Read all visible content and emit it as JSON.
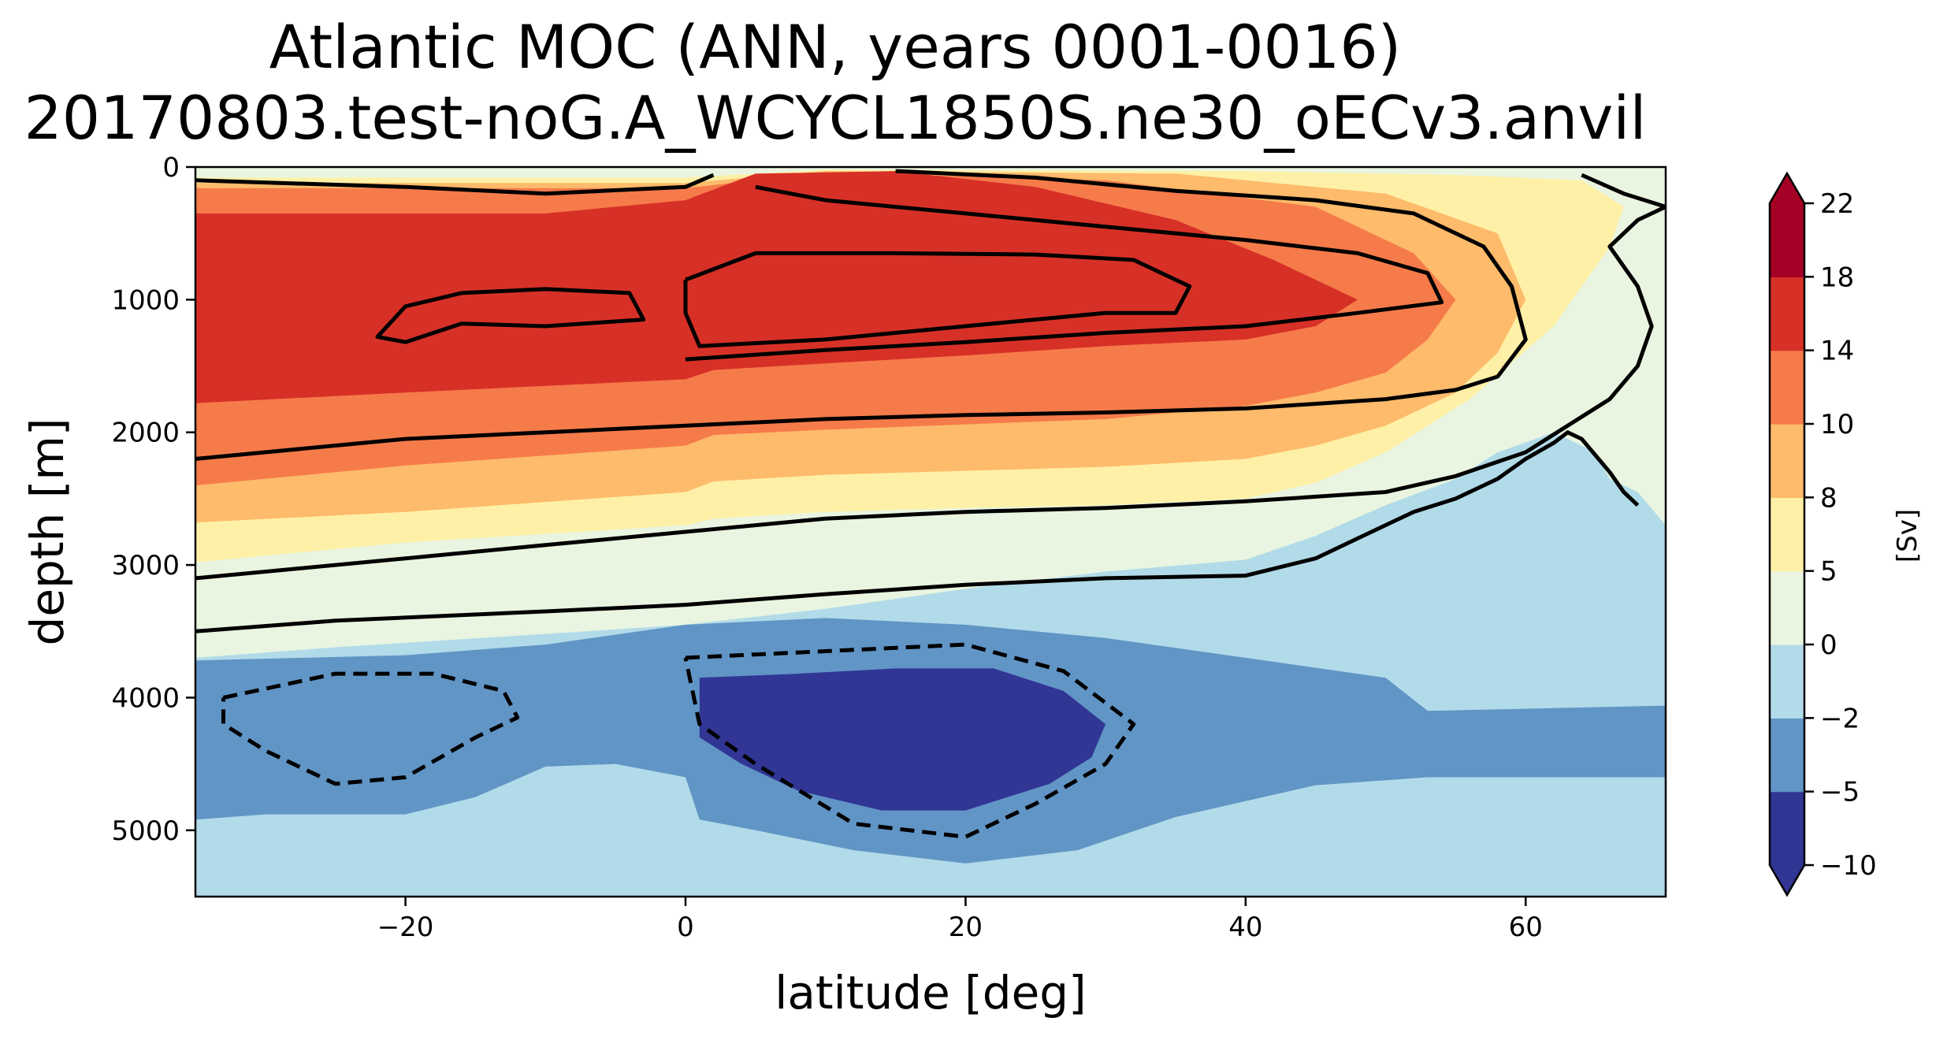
{
  "chart_data": {
    "type": "heatmap",
    "title": "Atlantic MOC (ANN, years 0001-0016)",
    "subtitle": "20170803.test-noG.A_WCYCL1850S.ne30_oECv3.anvil",
    "xlabel": "latitude [deg]",
    "ylabel": "depth [m]",
    "xlim": [
      -35,
      70
    ],
    "ylim": [
      5500,
      0
    ],
    "y_inverted": true,
    "x_ticks": [
      {
        "value": -20,
        "label": "−20"
      },
      {
        "value": 0,
        "label": "0"
      },
      {
        "value": 20,
        "label": "20"
      },
      {
        "value": 40,
        "label": "40"
      },
      {
        "value": 60,
        "label": "60"
      }
    ],
    "y_ticks": [
      {
        "value": 0,
        "label": "0"
      },
      {
        "value": 1000,
        "label": "1000"
      },
      {
        "value": 2000,
        "label": "2000"
      },
      {
        "value": 3000,
        "label": "3000"
      },
      {
        "value": 4000,
        "label": "4000"
      },
      {
        "value": 5000,
        "label": "5000"
      }
    ],
    "colorbar": {
      "label": "[Sv]",
      "extend": "both",
      "levels": [
        -10,
        -5,
        -2,
        0,
        5,
        8,
        10,
        14,
        18,
        22
      ],
      "level_labels": [
        "−10",
        "−5",
        "−2",
        "0",
        "5",
        "8",
        "10",
        "14",
        "18",
        "22"
      ],
      "colors": [
        "#313695",
        "#6195c6",
        "#b2dbe9",
        "#e9f5e0",
        "#fef0a6",
        "#fdbb6b",
        "#f67b4a",
        "#d73027",
        "#a50026"
      ],
      "under_color": "#313695",
      "over_color": "#a50026"
    },
    "regions": [
      {
        "name": "pos-0-5",
        "class": "0 to 5",
        "points": [
          [
            -35,
            0
          ],
          [
            70,
            0
          ],
          [
            70,
            2700
          ],
          [
            64,
            2450
          ],
          [
            60,
            2500
          ],
          [
            55,
            2700
          ],
          [
            50,
            2850
          ],
          [
            45,
            2950
          ],
          [
            40,
            3050
          ],
          [
            30,
            3100
          ],
          [
            20,
            3150
          ],
          [
            5,
            3250
          ],
          [
            0,
            3300
          ],
          [
            -10,
            3450
          ],
          [
            -25,
            3600
          ],
          [
            -35,
            3680
          ]
        ]
      },
      {
        "name": "pos-5-8",
        "class": "5 to 8",
        "points": [
          [
            -35,
            80
          ],
          [
            0,
            80
          ],
          [
            10,
            20
          ],
          [
            40,
            30
          ],
          [
            55,
            60
          ],
          [
            64,
            100
          ],
          [
            67,
            300
          ],
          [
            66,
            600
          ],
          [
            62,
            1200
          ],
          [
            56,
            1750
          ],
          [
            50,
            2150
          ],
          [
            45,
            2380
          ],
          [
            40,
            2500
          ],
          [
            30,
            2550
          ],
          [
            20,
            2570
          ],
          [
            10,
            2600
          ],
          [
            2,
            2650
          ],
          [
            0,
            2700
          ],
          [
            -20,
            2830
          ],
          [
            -35,
            2980
          ]
        ]
      },
      {
        "name": "pos-8-10",
        "class": "8 to 10",
        "points": [
          [
            -35,
            120
          ],
          [
            0,
            120
          ],
          [
            10,
            30
          ],
          [
            35,
            50
          ],
          [
            50,
            200
          ],
          [
            58,
            500
          ],
          [
            60,
            1000
          ],
          [
            58,
            1400
          ],
          [
            55,
            1700
          ],
          [
            50,
            1950
          ],
          [
            45,
            2100
          ],
          [
            40,
            2200
          ],
          [
            30,
            2260
          ],
          [
            20,
            2290
          ],
          [
            10,
            2320
          ],
          [
            2,
            2370
          ],
          [
            0,
            2450
          ],
          [
            -20,
            2600
          ],
          [
            -35,
            2680
          ]
        ]
      },
      {
        "name": "pos-10-14",
        "class": "10 to 14",
        "points": [
          [
            -35,
            160
          ],
          [
            0,
            160
          ],
          [
            10,
            40
          ],
          [
            30,
            100
          ],
          [
            45,
            300
          ],
          [
            52,
            650
          ],
          [
            55,
            1000
          ],
          [
            53,
            1300
          ],
          [
            50,
            1550
          ],
          [
            45,
            1700
          ],
          [
            40,
            1800
          ],
          [
            30,
            1900
          ],
          [
            20,
            1940
          ],
          [
            10,
            1980
          ],
          [
            2,
            2020
          ],
          [
            0,
            2100
          ],
          [
            -20,
            2250
          ],
          [
            -35,
            2400
          ]
        ]
      },
      {
        "name": "pos-14-18",
        "class": "14 to 18",
        "points": [
          [
            -35,
            350
          ],
          [
            -10,
            350
          ],
          [
            0,
            250
          ],
          [
            5,
            50
          ],
          [
            15,
            30
          ],
          [
            25,
            150
          ],
          [
            35,
            400
          ],
          [
            42,
            700
          ],
          [
            48,
            1000
          ],
          [
            45,
            1200
          ],
          [
            40,
            1300
          ],
          [
            30,
            1350
          ],
          [
            20,
            1420
          ],
          [
            10,
            1480
          ],
          [
            2,
            1530
          ],
          [
            0,
            1600
          ],
          [
            -20,
            1700
          ],
          [
            -35,
            1780
          ]
        ]
      },
      {
        "name": "neg-0-2",
        "class": "0 to -2",
        "points": [
          [
            -35,
            3700
          ],
          [
            -25,
            3620
          ],
          [
            -10,
            3520
          ],
          [
            0,
            3450
          ],
          [
            10,
            3330
          ],
          [
            20,
            3180
          ],
          [
            30,
            3050
          ],
          [
            40,
            2960
          ],
          [
            45,
            2780
          ],
          [
            50,
            2550
          ],
          [
            55,
            2350
          ],
          [
            58,
            2150
          ],
          [
            62,
            2000
          ],
          [
            65,
            2150
          ],
          [
            66,
            2350
          ],
          [
            68,
            2450
          ],
          [
            70,
            2700
          ],
          [
            70,
            5500
          ],
          [
            -35,
            5500
          ]
        ]
      },
      {
        "name": "neg-2-5",
        "class": "-2 to -5",
        "points": [
          [
            -35,
            3720
          ],
          [
            -20,
            3680
          ],
          [
            -10,
            3600
          ],
          [
            0,
            3450
          ],
          [
            10,
            3400
          ],
          [
            20,
            3450
          ],
          [
            30,
            3550
          ],
          [
            40,
            3700
          ],
          [
            50,
            3850
          ],
          [
            53,
            4100
          ],
          [
            70,
            4060
          ],
          [
            70,
            4600
          ],
          [
            53,
            4600
          ],
          [
            45,
            4660
          ],
          [
            35,
            4900
          ],
          [
            28,
            5150
          ],
          [
            20,
            5250
          ],
          [
            12,
            5150
          ],
          [
            5,
            5000
          ],
          [
            1,
            4920
          ],
          [
            0,
            4600
          ],
          [
            -5,
            4500
          ],
          [
            -10,
            4520
          ],
          [
            -15,
            4750
          ],
          [
            -20,
            4880
          ],
          [
            -30,
            4880
          ],
          [
            -35,
            4920
          ]
        ]
      },
      {
        "name": "neg-5-10",
        "class": "-5 to -10",
        "points": [
          [
            1,
            3850
          ],
          [
            8,
            3820
          ],
          [
            15,
            3780
          ],
          [
            22,
            3780
          ],
          [
            27,
            3950
          ],
          [
            30,
            4200
          ],
          [
            29,
            4450
          ],
          [
            26,
            4650
          ],
          [
            20,
            4850
          ],
          [
            14,
            4850
          ],
          [
            8,
            4700
          ],
          [
            4,
            4500
          ],
          [
            1,
            4300
          ]
        ]
      }
    ],
    "contour_lines_solid": [
      {
        "name": "c-0",
        "points": [
          [
            -35,
            3500
          ],
          [
            -25,
            3420
          ],
          [
            -10,
            3350
          ],
          [
            0,
            3300
          ],
          [
            10,
            3220
          ],
          [
            20,
            3150
          ],
          [
            30,
            3100
          ],
          [
            40,
            3080
          ],
          [
            45,
            2950
          ],
          [
            48,
            2800
          ],
          [
            52,
            2600
          ],
          [
            55,
            2500
          ],
          [
            58,
            2350
          ],
          [
            60,
            2200
          ],
          [
            62,
            2080
          ],
          [
            63,
            2000
          ],
          [
            64,
            2050
          ],
          [
            66,
            2300
          ],
          [
            67,
            2450
          ],
          [
            68,
            2550
          ]
        ]
      },
      {
        "name": "c-5",
        "points": [
          [
            -35,
            3100
          ],
          [
            -20,
            2950
          ],
          [
            -10,
            2850
          ],
          [
            0,
            2750
          ],
          [
            10,
            2650
          ],
          [
            20,
            2600
          ],
          [
            30,
            2570
          ],
          [
            40,
            2520
          ],
          [
            50,
            2450
          ],
          [
            55,
            2330
          ],
          [
            60,
            2150
          ],
          [
            63,
            1950
          ],
          [
            66,
            1750
          ],
          [
            68,
            1500
          ],
          [
            69,
            1200
          ],
          [
            68,
            900
          ],
          [
            66,
            600
          ],
          [
            68,
            400
          ],
          [
            70,
            300
          ],
          [
            67,
            200
          ],
          [
            64,
            60
          ]
        ]
      },
      {
        "name": "c-10",
        "points": [
          [
            -35,
            2200
          ],
          [
            -20,
            2050
          ],
          [
            -10,
            2000
          ],
          [
            0,
            1950
          ],
          [
            10,
            1900
          ],
          [
            20,
            1870
          ],
          [
            30,
            1850
          ],
          [
            40,
            1820
          ],
          [
            50,
            1750
          ],
          [
            55,
            1680
          ],
          [
            58,
            1580
          ],
          [
            60,
            1300
          ],
          [
            59,
            900
          ],
          [
            57,
            600
          ],
          [
            52,
            350
          ],
          [
            45,
            250
          ],
          [
            35,
            180
          ],
          [
            25,
            80
          ],
          [
            15,
            30
          ]
        ]
      },
      {
        "name": "c-14",
        "points": [
          [
            0,
            1450
          ],
          [
            10,
            1380
          ],
          [
            20,
            1320
          ],
          [
            30,
            1250
          ],
          [
            40,
            1200
          ],
          [
            48,
            1100
          ],
          [
            54,
            1020
          ],
          [
            53,
            800
          ],
          [
            48,
            650
          ],
          [
            40,
            550
          ],
          [
            30,
            450
          ],
          [
            20,
            350
          ],
          [
            10,
            250
          ],
          [
            5,
            150
          ]
        ]
      },
      {
        "name": "c-16a",
        "points": [
          [
            -16,
            950
          ],
          [
            -10,
            920
          ],
          [
            -4,
            950
          ],
          [
            -3,
            1150
          ],
          [
            -10,
            1200
          ],
          [
            -16,
            1180
          ],
          [
            -20,
            1320
          ],
          [
            -22,
            1280
          ],
          [
            -20,
            1050
          ],
          [
            -18,
            1000
          ],
          [
            -16,
            950
          ]
        ]
      },
      {
        "name": "c-16b",
        "points": [
          [
            0,
            850
          ],
          [
            5,
            650
          ],
          [
            15,
            650
          ],
          [
            25,
            660
          ],
          [
            32,
            700
          ],
          [
            36,
            900
          ],
          [
            35,
            1100
          ],
          [
            30,
            1100
          ],
          [
            20,
            1200
          ],
          [
            10,
            1300
          ],
          [
            1,
            1350
          ],
          [
            0,
            1100
          ],
          [
            0,
            850
          ]
        ]
      },
      {
        "name": "c-10-top",
        "points": [
          [
            -35,
            100
          ],
          [
            -20,
            150
          ],
          [
            -10,
            200
          ],
          [
            0,
            150
          ],
          [
            2,
            60
          ]
        ]
      }
    ],
    "contour_lines_dashed": [
      {
        "name": "c-neg2-left",
        "points": [
          [
            -33,
            4000
          ],
          [
            -25,
            3820
          ],
          [
            -18,
            3820
          ],
          [
            -13,
            3950
          ],
          [
            -12,
            4150
          ],
          [
            -15,
            4300
          ],
          [
            -20,
            4600
          ],
          [
            -25,
            4650
          ],
          [
            -30,
            4400
          ],
          [
            -33,
            4200
          ],
          [
            -33,
            4000
          ]
        ]
      },
      {
        "name": "c-neg2-mid",
        "points": [
          [
            0,
            3700
          ],
          [
            10,
            3650
          ],
          [
            20,
            3600
          ],
          [
            27,
            3800
          ],
          [
            32,
            4200
          ],
          [
            30,
            4500
          ],
          [
            25,
            4800
          ],
          [
            20,
            5050
          ],
          [
            12,
            4950
          ],
          [
            5,
            4500
          ],
          [
            1,
            4200
          ],
          [
            0,
            3700
          ]
        ]
      }
    ]
  }
}
